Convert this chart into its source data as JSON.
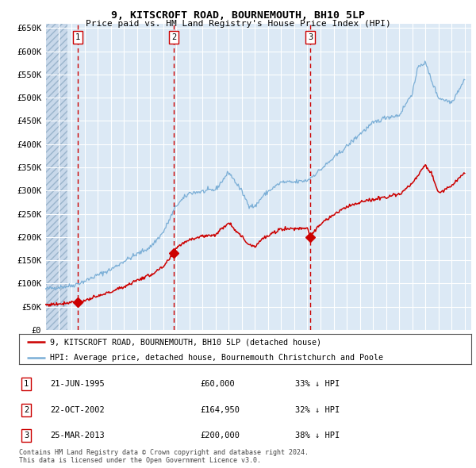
{
  "title": "9, KITSCROFT ROAD, BOURNEMOUTH, BH10 5LP",
  "subtitle": "Price paid vs. HM Land Registry's House Price Index (HPI)",
  "background_color": "#ffffff",
  "plot_bg_color": "#dce9f5",
  "grid_color": "#ffffff",
  "hatch_color": "#c8d8ea",
  "red_line_color": "#cc0000",
  "blue_line_color": "#7aaed6",
  "vline_color": "#cc0000",
  "transactions": [
    {
      "date_x": 1995.47,
      "price": 60000,
      "label": "1"
    },
    {
      "date_x": 2002.81,
      "price": 164950,
      "label": "2"
    },
    {
      "date_x": 2013.23,
      "price": 200000,
      "label": "3"
    }
  ],
  "legend_label_red": "9, KITSCROFT ROAD, BOURNEMOUTH, BH10 5LP (detached house)",
  "legend_label_blue": "HPI: Average price, detached house, Bournemouth Christchurch and Poole",
  "table_rows": [
    {
      "num": "1",
      "date": "21-JUN-1995",
      "price": "£60,000",
      "note": "33% ↓ HPI"
    },
    {
      "num": "2",
      "date": "22-OCT-2002",
      "price": "£164,950",
      "note": "32% ↓ HPI"
    },
    {
      "num": "3",
      "date": "25-MAR-2013",
      "price": "£200,000",
      "note": "38% ↓ HPI"
    }
  ],
  "footer": "Contains HM Land Registry data © Crown copyright and database right 2024.\nThis data is licensed under the Open Government Licence v3.0.",
  "ylim": [
    0,
    660000
  ],
  "xlim_start": 1993.0,
  "xlim_end": 2025.5
}
